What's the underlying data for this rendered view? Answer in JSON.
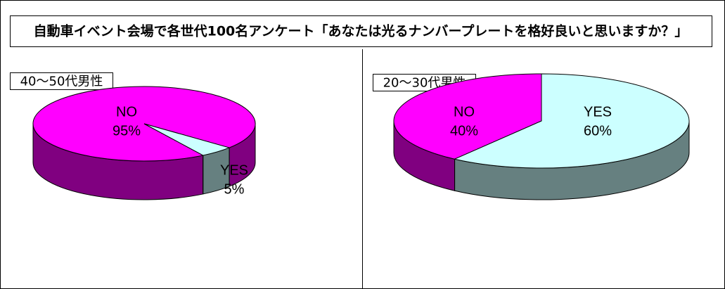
{
  "title": "自動車イベント会場で各世代100名アンケート「あなたは光るナンバープレートを格好良いと思いますか？」",
  "chart_data": [
    {
      "type": "pie",
      "title": "40～50代男性",
      "categories": [
        "NO",
        "YES"
      ],
      "values": [
        95,
        5
      ],
      "value_labels": [
        "95%",
        "5%"
      ],
      "colors": [
        "#ff00ff",
        "#ccffff"
      ]
    },
    {
      "type": "pie",
      "title": "20～30代男性",
      "categories": [
        "NO",
        "YES"
      ],
      "values": [
        40,
        60
      ],
      "value_labels": [
        "40%",
        "60%"
      ],
      "colors": [
        "#ff00ff",
        "#ccffff"
      ]
    }
  ]
}
